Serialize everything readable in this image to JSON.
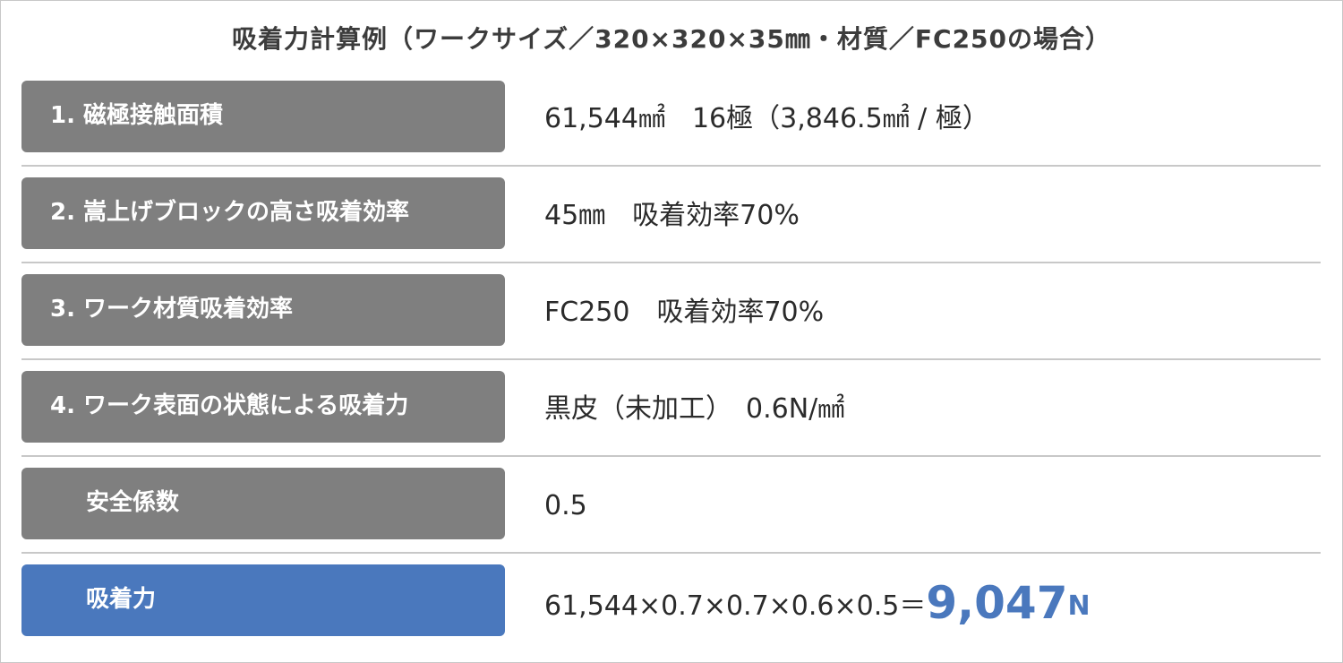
{
  "title": "吸着力計算例（ワークサイズ／320×320×35㎜・材質／FC250の場合）",
  "rows": [
    {
      "label": "1. 磁極接触面積",
      "value": "61,544㎟　16極（3,846.5㎟ / 極）"
    },
    {
      "label": "2. 嵩上げブロックの高さ吸着効率",
      "value": "45㎜　吸着効率70%"
    },
    {
      "label": "3. ワーク材質吸着効率",
      "value": "FC250　吸着効率70%"
    },
    {
      "label": "4. ワーク表面の状態による吸着力",
      "value": "黒皮（未加工）　0.6N/㎟"
    },
    {
      "label": "安全係数",
      "value": "0.5"
    }
  ],
  "result": {
    "label": "吸着力",
    "formula": "61,544×0.7×0.7×0.6×0.5＝",
    "answer": "9,047",
    "unit": "N"
  },
  "colors": {
    "label_gray": "#7f7f7f",
    "accent_blue": "#4a78bd",
    "separator": "#c8c8c8",
    "text": "#2b2b2b"
  }
}
